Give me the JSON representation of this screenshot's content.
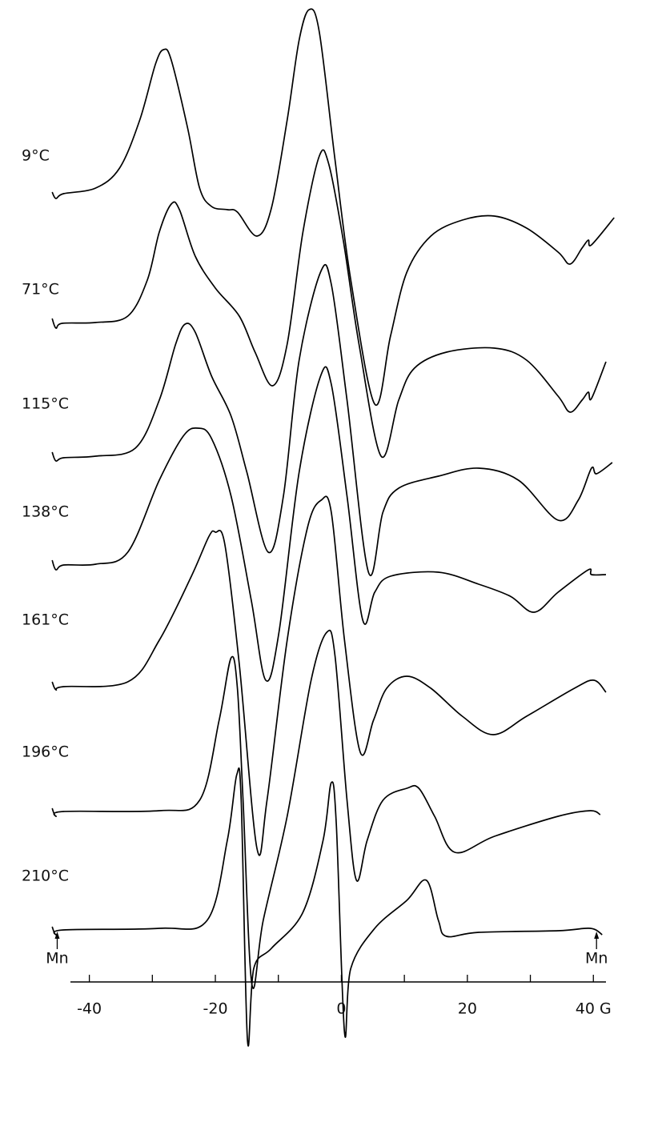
{
  "chart_data": {
    "type": "line",
    "stacked_offsets": true,
    "color": "#000000",
    "x_unit_tick": {
      "value": 40,
      "label": "40 G"
    },
    "xlim": [
      -43,
      42
    ],
    "xticks": [
      -40,
      -20,
      0,
      20,
      {
        "value": 40,
        "label": "40 G"
      }
    ],
    "xticks_minor": [
      -30,
      -10,
      10,
      30
    ],
    "annotations": [
      {
        "text": "Mn",
        "x": -45.1
      },
      {
        "text": "Mn",
        "x": 40.5
      }
    ],
    "series": [
      {
        "name": "9°C",
        "x": [
          -45.9,
          -45.3,
          -44.1,
          -39.0,
          -35.2,
          -32.0,
          -29.5,
          -28.2,
          -27.0,
          -24.4,
          -22.5,
          -20.6,
          -18.1,
          -16.5,
          -13.4,
          -11.1,
          -8.6,
          -6.7,
          -5.1,
          -3.5,
          -1.0,
          1.5,
          5.3,
          7.8,
          10.4,
          14.2,
          19.2,
          24.3,
          29.4,
          34.4,
          36.3,
          38.2,
          39.2,
          39.7,
          43.3
        ],
        "values": [
          0.5,
          -0.3,
          0.3,
          1.0,
          3.5,
          9.5,
          16.5,
          18.3,
          17.0,
          8.5,
          1.0,
          -1.3,
          -1.7,
          -2.0,
          -5.0,
          -1.5,
          9.5,
          19.5,
          23.3,
          20.5,
          4.5,
          -10.5,
          -26.0,
          -17.5,
          -9.5,
          -5.0,
          -3.0,
          -2.5,
          -4.0,
          -7.0,
          -8.5,
          -6.5,
          -5.5,
          -6.1,
          -2.7
        ]
      },
      {
        "name": "71°C",
        "x": [
          -45.9,
          -45.3,
          -44.3,
          -39.0,
          -33.9,
          -30.8,
          -28.9,
          -27.0,
          -25.7,
          -23.2,
          -20.0,
          -16.2,
          -13.7,
          -10.9,
          -8.6,
          -6.1,
          -3.5,
          -2.0,
          0.3,
          2.8,
          6.3,
          9.1,
          11.6,
          16.7,
          24.3,
          29.4,
          34.4,
          36.3,
          38.2,
          39.2,
          39.7,
          42.0
        ],
        "values": [
          0.7,
          -0.5,
          0.1,
          0.2,
          1.0,
          5.5,
          11.5,
          15.0,
          14.3,
          8.5,
          4.5,
          1.0,
          -3.5,
          -7.7,
          -2.5,
          11.5,
          21.0,
          20.0,
          10.5,
          -2.5,
          -16.5,
          -9.5,
          -5.5,
          -3.5,
          -3.0,
          -4.5,
          -9.0,
          -11.0,
          -9.5,
          -8.5,
          -9.3,
          -4.7
        ]
      },
      {
        "name": "115°C",
        "x": [
          -45.9,
          -45.3,
          -44.1,
          -39.0,
          -32.7,
          -28.9,
          -26.3,
          -24.8,
          -23.2,
          -20.6,
          -17.5,
          -15.0,
          -11.6,
          -9.2,
          -6.7,
          -3.3,
          -1.6,
          0.9,
          4.3,
          6.6,
          9.1,
          15.4,
          21.8,
          28.1,
          34.4,
          37.6,
          39.7,
          40.5,
          43.0
        ],
        "values": [
          0.7,
          -0.4,
          0.0,
          0.2,
          1.2,
          7.2,
          14.2,
          16.7,
          15.7,
          10.2,
          5.2,
          -1.8,
          -11.8,
          -4.8,
          12.2,
          23.2,
          21.7,
          7.2,
          -14.3,
          -6.8,
          -3.8,
          -2.3,
          -1.3,
          -2.8,
          -7.8,
          -5.3,
          -1.3,
          -2.0,
          -0.6
        ]
      },
      {
        "name": "138°C",
        "x": [
          -45.9,
          -45.3,
          -44.1,
          -39.0,
          -33.9,
          -28.9,
          -25.1,
          -22.8,
          -20.6,
          -17.5,
          -14.3,
          -12.0,
          -9.9,
          -6.7,
          -3.3,
          -1.6,
          0.9,
          3.4,
          5.3,
          7.8,
          15.4,
          21.8,
          26.8,
          30.6,
          34.4,
          39.2,
          39.7,
          42.0
        ],
        "values": [
          0.8,
          -0.4,
          0.2,
          0.3,
          1.8,
          10.8,
          16.3,
          17.3,
          16.0,
          8.8,
          -4.2,
          -14.2,
          -8.2,
          11.8,
          23.8,
          22.8,
          8.8,
          -6.7,
          -3.2,
          -1.2,
          -0.7,
          -2.2,
          -3.7,
          -5.7,
          -3.2,
          -0.4,
          -1.0,
          -1.0
        ]
      },
      {
        "name": "161°C",
        "x": [
          -45.9,
          -45.3,
          -44.1,
          -33.9,
          -28.9,
          -23.8,
          -21.0,
          -20.0,
          -18.5,
          -16.2,
          -13.4,
          -11.8,
          -8.6,
          -5.4,
          -3.2,
          -1.6,
          0.5,
          3.0,
          5.1,
          7.2,
          10.4,
          14.2,
          19.2,
          24.1,
          29.4,
          37.0,
          40.1,
          42.0
        ],
        "values": [
          0.6,
          -0.4,
          0.0,
          0.6,
          5.8,
          13.8,
          18.8,
          19.3,
          17.8,
          2.8,
          -20.2,
          -14.2,
          5.8,
          19.8,
          23.3,
          21.8,
          5.8,
          -8.2,
          -4.2,
          -0.2,
          1.3,
          -0.2,
          -3.7,
          -6.0,
          -3.7,
          -0.2,
          0.8,
          -0.7
        ]
      },
      {
        "name": "196°C",
        "x": [
          -45.9,
          -45.3,
          -44.1,
          -28.9,
          -22.5,
          -19.4,
          -17.5,
          -16.5,
          -15.6,
          -14.2,
          -12.4,
          -8.6,
          -4.8,
          -2.3,
          -1.0,
          0.9,
          2.4,
          4.1,
          6.6,
          10.4,
          12.3,
          14.8,
          18.0,
          24.3,
          34.4,
          39.5,
          41.1
        ],
        "values": [
          0.5,
          -0.5,
          0.1,
          0.2,
          1.5,
          11.5,
          19.3,
          15.5,
          1.5,
          -21.5,
          -13.5,
          -0.5,
          16.5,
          22.5,
          19.5,
          1.5,
          -8.5,
          -3.5,
          1.5,
          3.0,
          3.0,
          -0.5,
          -5.0,
          -3.0,
          -0.5,
          0.2,
          -0.3
        ]
      },
      {
        "name": "210°C",
        "x": [
          -45.9,
          -45.3,
          -44.1,
          -28.9,
          -21.3,
          -18.1,
          -16.6,
          -15.9,
          -14.9,
          -13.9,
          -11.1,
          -6.1,
          -2.9,
          -1.6,
          -0.8,
          0.5,
          1.5,
          5.3,
          10.4,
          13.5,
          15.4,
          16.7,
          21.8,
          34.4,
          39.5,
          41.4
        ],
        "values": [
          0.5,
          -0.5,
          0.1,
          0.3,
          1.3,
          11.3,
          19.5,
          16.3,
          -13.7,
          -4.7,
          -2.2,
          2.3,
          11.3,
          18.5,
          13.3,
          -12.7,
          -4.7,
          0.3,
          3.8,
          6.3,
          1.3,
          -0.7,
          -0.2,
          0.0,
          0.3,
          -0.5
        ]
      }
    ]
  }
}
